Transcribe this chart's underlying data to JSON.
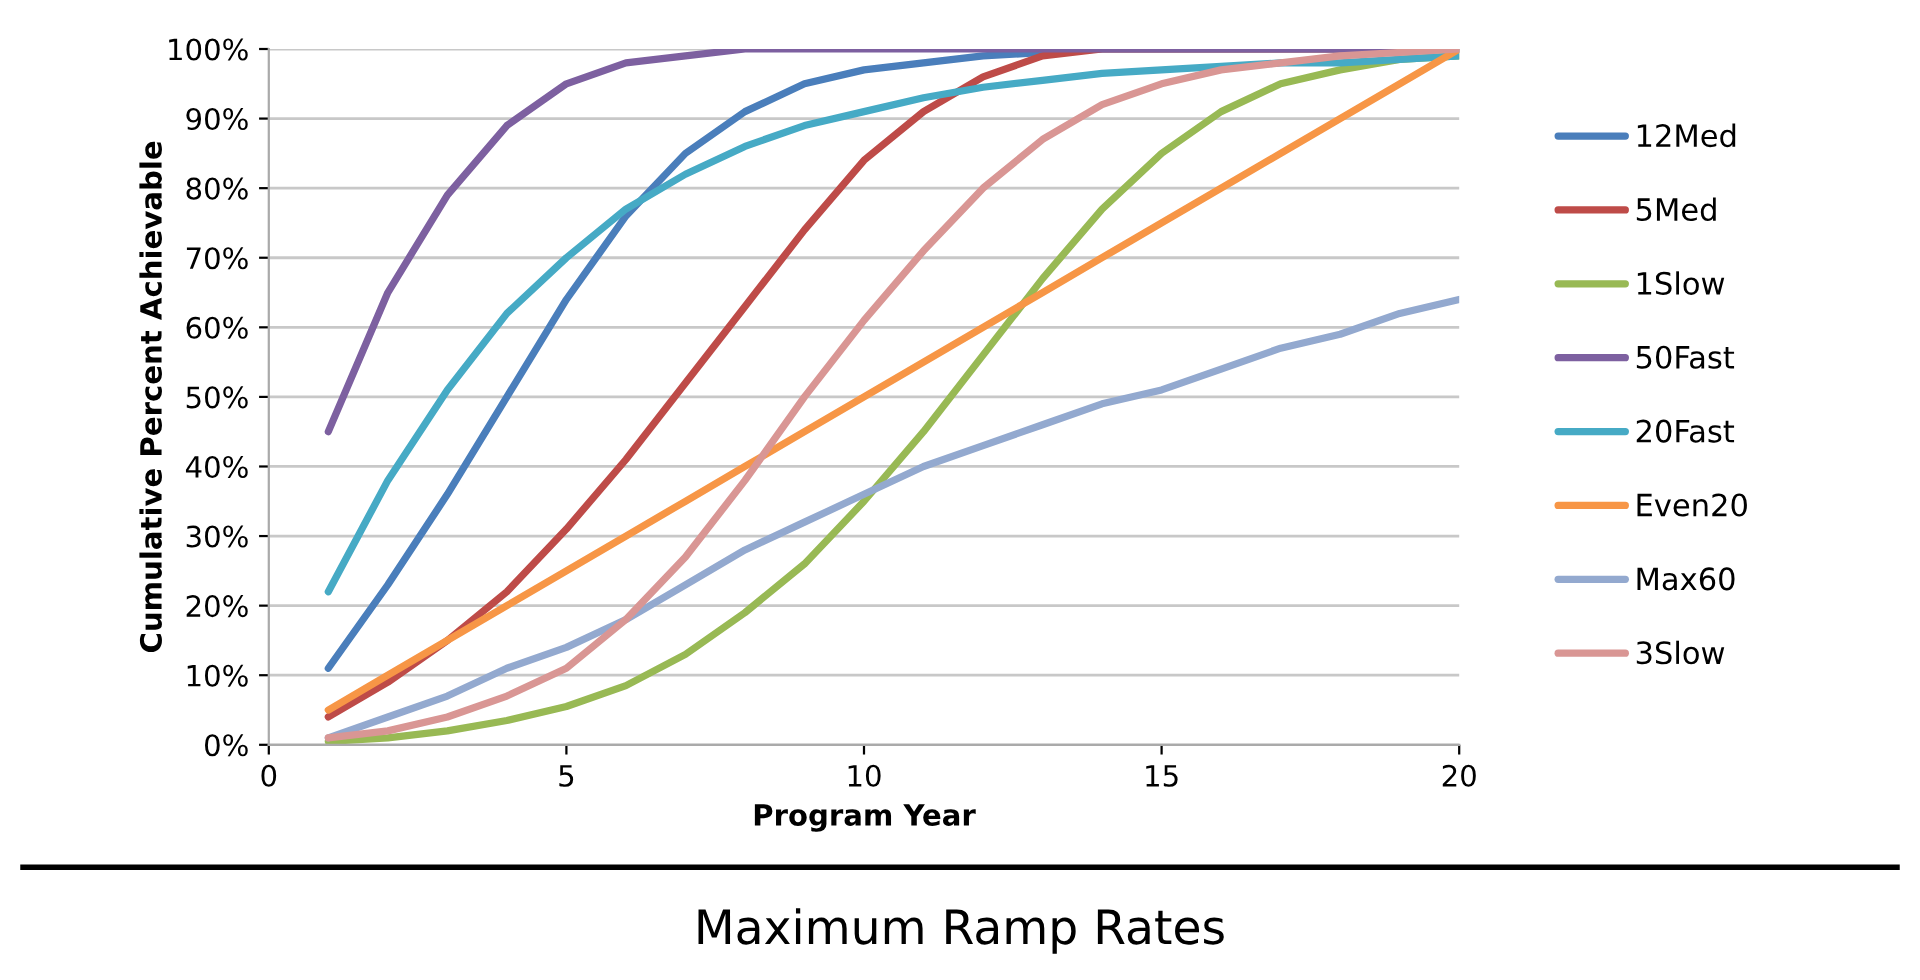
{
  "chart_data": {
    "type": "line",
    "title": "Maximum Ramp Rates",
    "xlabel": "Program Year",
    "ylabel": "Cumulative Percent Achievable",
    "x": [
      1,
      2,
      3,
      4,
      5,
      6,
      7,
      8,
      9,
      10,
      11,
      12,
      13,
      14,
      15,
      16,
      17,
      18,
      19,
      20
    ],
    "xlim": [
      0,
      20
    ],
    "xticks": [
      0,
      5,
      10,
      15,
      20
    ],
    "ylim": [
      0,
      100
    ],
    "yticks": [
      {
        "value": 0,
        "label": "0%"
      },
      {
        "value": 10,
        "label": "10%"
      },
      {
        "value": 20,
        "label": "20%"
      },
      {
        "value": 30,
        "label": "30%"
      },
      {
        "value": 40,
        "label": "40%"
      },
      {
        "value": 50,
        "label": "50%"
      },
      {
        "value": 60,
        "label": "60%"
      },
      {
        "value": 70,
        "label": "70%"
      },
      {
        "value": 80,
        "label": "80%"
      },
      {
        "value": 90,
        "label": "90%"
      },
      {
        "value": 100,
        "label": "100%"
      }
    ],
    "grid": "y",
    "legend": "right",
    "marker": "none",
    "line_style": "solid",
    "series": [
      {
        "name": "12Med",
        "color": "#4a7ebb",
        "values": [
          11,
          23,
          36,
          50,
          64,
          76,
          85,
          91,
          95,
          97,
          98,
          99,
          99.5,
          100,
          100,
          100,
          100,
          100,
          100,
          100
        ]
      },
      {
        "name": "5Med",
        "color": "#be4b48",
        "values": [
          4,
          9,
          15,
          22,
          31,
          41,
          52,
          63,
          74,
          84,
          91,
          96,
          99,
          100,
          100,
          100,
          100,
          100,
          100,
          100
        ]
      },
      {
        "name": "1Slow",
        "color": "#98b954",
        "values": [
          0.5,
          1,
          2,
          3.5,
          5.5,
          8.5,
          13,
          19,
          26,
          35,
          45,
          56,
          67,
          77,
          85,
          91,
          95,
          97,
          98.5,
          99
        ]
      },
      {
        "name": "50Fast",
        "color": "#7d60a0",
        "values": [
          45,
          65,
          79,
          89,
          95,
          98,
          99,
          100,
          100,
          100,
          100,
          100,
          100,
          100,
          100,
          100,
          100,
          100,
          100,
          100
        ]
      },
      {
        "name": "20Fast",
        "color": "#46aac5",
        "values": [
          22,
          38,
          51,
          62,
          70,
          77,
          82,
          86,
          89,
          91,
          93,
          94.5,
          95.5,
          96.5,
          97,
          97.5,
          98,
          98,
          98.5,
          99
        ]
      },
      {
        "name": "Even20",
        "color": "#f79646",
        "values": [
          5,
          10,
          15,
          20,
          25,
          30,
          35,
          40,
          45,
          50,
          55,
          60,
          65,
          70,
          75,
          80,
          85,
          90,
          95,
          100
        ]
      },
      {
        "name": "Max60",
        "color": "#93a9cf",
        "values": [
          1,
          4,
          7,
          11,
          14,
          18,
          23,
          28,
          32,
          36,
          40,
          43,
          46,
          49,
          51,
          54,
          57,
          59,
          62,
          64
        ]
      },
      {
        "name": "3Slow",
        "color": "#d99694",
        "values": [
          1,
          2,
          4,
          7,
          11,
          18,
          27,
          38,
          50,
          61,
          71,
          80,
          87,
          92,
          95,
          97,
          98,
          99,
          99.5,
          100
        ]
      }
    ]
  }
}
